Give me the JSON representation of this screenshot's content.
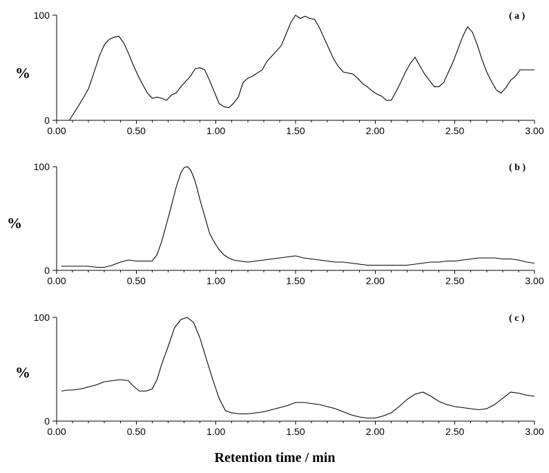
{
  "chart_data": [
    {
      "type": "line",
      "panel_label": "( a )",
      "ylabel": "%",
      "xlim": [
        0,
        3
      ],
      "ylim": [
        0,
        100
      ],
      "xticks": [
        "0.00",
        "0.50",
        "1.00",
        "1.50",
        "2.00",
        "2.50",
        "3.00"
      ],
      "yticks": [
        "0",
        "100"
      ],
      "grid": false,
      "x": [
        0.0,
        0.04,
        0.08,
        0.1,
        0.13,
        0.17,
        0.2,
        0.24,
        0.27,
        0.3,
        0.33,
        0.36,
        0.39,
        0.42,
        0.45,
        0.48,
        0.51,
        0.54,
        0.57,
        0.6,
        0.63,
        0.66,
        0.69,
        0.72,
        0.75,
        0.78,
        0.81,
        0.84,
        0.87,
        0.9,
        0.93,
        0.96,
        0.99,
        1.02,
        1.05,
        1.08,
        1.11,
        1.14,
        1.17,
        1.2,
        1.23,
        1.26,
        1.29,
        1.32,
        1.35,
        1.38,
        1.41,
        1.44,
        1.47,
        1.5,
        1.53,
        1.56,
        1.59,
        1.62,
        1.65,
        1.68,
        1.71,
        1.74,
        1.77,
        1.8,
        1.83,
        1.86,
        1.89,
        1.92,
        1.95,
        1.98,
        2.01,
        2.04,
        2.07,
        2.1,
        2.13,
        2.16,
        2.19,
        2.22,
        2.25,
        2.28,
        2.31,
        2.34,
        2.37,
        2.4,
        2.43,
        2.46,
        2.49,
        2.52,
        2.55,
        2.58,
        2.61,
        2.64,
        2.67,
        2.7,
        2.73,
        2.76,
        2.79,
        2.82,
        2.85,
        2.88,
        2.91,
        2.94,
        2.97,
        3.0
      ],
      "y": [
        0,
        0,
        0,
        5,
        12,
        22,
        30,
        48,
        62,
        72,
        77,
        79,
        80,
        74,
        64,
        53,
        43,
        34,
        26,
        21,
        22,
        21,
        19,
        24,
        26,
        32,
        37,
        42,
        49,
        50,
        48,
        38,
        27,
        16,
        13,
        12,
        16,
        22,
        36,
        40,
        42,
        45,
        48,
        56,
        61,
        66,
        71,
        82,
        93,
        100,
        97,
        99,
        97,
        96,
        88,
        78,
        68,
        58,
        51,
        46,
        45,
        44,
        40,
        35,
        32,
        28,
        25,
        23,
        19,
        19,
        27,
        36,
        46,
        54,
        60,
        52,
        44,
        38,
        32,
        32,
        36,
        46,
        56,
        68,
        80,
        89,
        84,
        72,
        58,
        46,
        37,
        29,
        26,
        31,
        38,
        42,
        48,
        48,
        48,
        48
      ],
      "xaxis_min": 0.0,
      "xaxis_max": 3.0
    },
    {
      "type": "line",
      "panel_label": "( b )",
      "ylabel": "%",
      "xlim": [
        0,
        3
      ],
      "ylim": [
        0,
        100
      ],
      "xticks": [
        "0.00",
        "0.50",
        "1.00",
        "1.50",
        "2.00",
        "2.50",
        "3.00"
      ],
      "yticks": [
        "0",
        "100"
      ],
      "grid": false,
      "x": [
        0.03,
        0.1,
        0.15,
        0.2,
        0.25,
        0.3,
        0.35,
        0.4,
        0.45,
        0.5,
        0.55,
        0.6,
        0.63,
        0.66,
        0.69,
        0.72,
        0.75,
        0.78,
        0.8,
        0.82,
        0.84,
        0.86,
        0.88,
        0.9,
        0.93,
        0.96,
        0.99,
        1.02,
        1.05,
        1.08,
        1.11,
        1.15,
        1.2,
        1.25,
        1.3,
        1.35,
        1.4,
        1.45,
        1.5,
        1.55,
        1.6,
        1.65,
        1.7,
        1.75,
        1.8,
        1.85,
        1.9,
        1.95,
        2.0,
        2.05,
        2.1,
        2.15,
        2.2,
        2.25,
        2.3,
        2.35,
        2.4,
        2.45,
        2.5,
        2.55,
        2.6,
        2.65,
        2.7,
        2.75,
        2.8,
        2.85,
        2.9,
        2.95,
        3.0
      ],
      "y": [
        4,
        4,
        4,
        4,
        3,
        3,
        5,
        8,
        10,
        9,
        9,
        9,
        15,
        28,
        45,
        62,
        80,
        94,
        99,
        100,
        97,
        90,
        80,
        68,
        52,
        36,
        27,
        20,
        15,
        12,
        10,
        9,
        8,
        9,
        10,
        11,
        12,
        13,
        14,
        12,
        11,
        10,
        9,
        8,
        8,
        7,
        6,
        5,
        5,
        5,
        5,
        5,
        5,
        6,
        7,
        8,
        8,
        9,
        9,
        10,
        11,
        12,
        12,
        12,
        11,
        11,
        10,
        8,
        7
      ],
      "xaxis_min": 0.0,
      "xaxis_max": 3.0
    },
    {
      "type": "line",
      "panel_label": "( c )",
      "ylabel": "%",
      "xlim": [
        0,
        3
      ],
      "ylim": [
        0,
        100
      ],
      "xticks": [
        "0.00",
        "0.50",
        "1.00",
        "1.50",
        "2.00",
        "2.50",
        "3.00"
      ],
      "yticks": [
        "0",
        "100"
      ],
      "grid": false,
      "x": [
        0.03,
        0.07,
        0.1,
        0.15,
        0.2,
        0.25,
        0.3,
        0.35,
        0.4,
        0.45,
        0.48,
        0.52,
        0.56,
        0.6,
        0.63,
        0.66,
        0.7,
        0.74,
        0.78,
        0.82,
        0.86,
        0.9,
        0.94,
        0.98,
        1.02,
        1.06,
        1.1,
        1.15,
        1.2,
        1.25,
        1.3,
        1.35,
        1.4,
        1.45,
        1.5,
        1.55,
        1.6,
        1.65,
        1.7,
        1.75,
        1.8,
        1.85,
        1.9,
        1.95,
        2.0,
        2.05,
        2.1,
        2.15,
        2.2,
        2.25,
        2.3,
        2.35,
        2.4,
        2.45,
        2.5,
        2.55,
        2.6,
        2.65,
        2.7,
        2.75,
        2.8,
        2.85,
        2.9,
        2.95,
        3.0
      ],
      "y": [
        29,
        30,
        30,
        31,
        33,
        35,
        38,
        39,
        40,
        39,
        34,
        29,
        29,
        31,
        40,
        55,
        72,
        90,
        98,
        100,
        95,
        80,
        60,
        40,
        22,
        10,
        8,
        7,
        7,
        8,
        9,
        11,
        13,
        15,
        18,
        18,
        17,
        16,
        14,
        12,
        9,
        6,
        4,
        3,
        3,
        5,
        8,
        14,
        21,
        26,
        28,
        24,
        19,
        16,
        14,
        13,
        12,
        11,
        12,
        16,
        22,
        28,
        27,
        25,
        24
      ],
      "xaxis_min": 0.0,
      "xaxis_max": 3.0
    }
  ],
  "xlabel": "Retention time / min"
}
